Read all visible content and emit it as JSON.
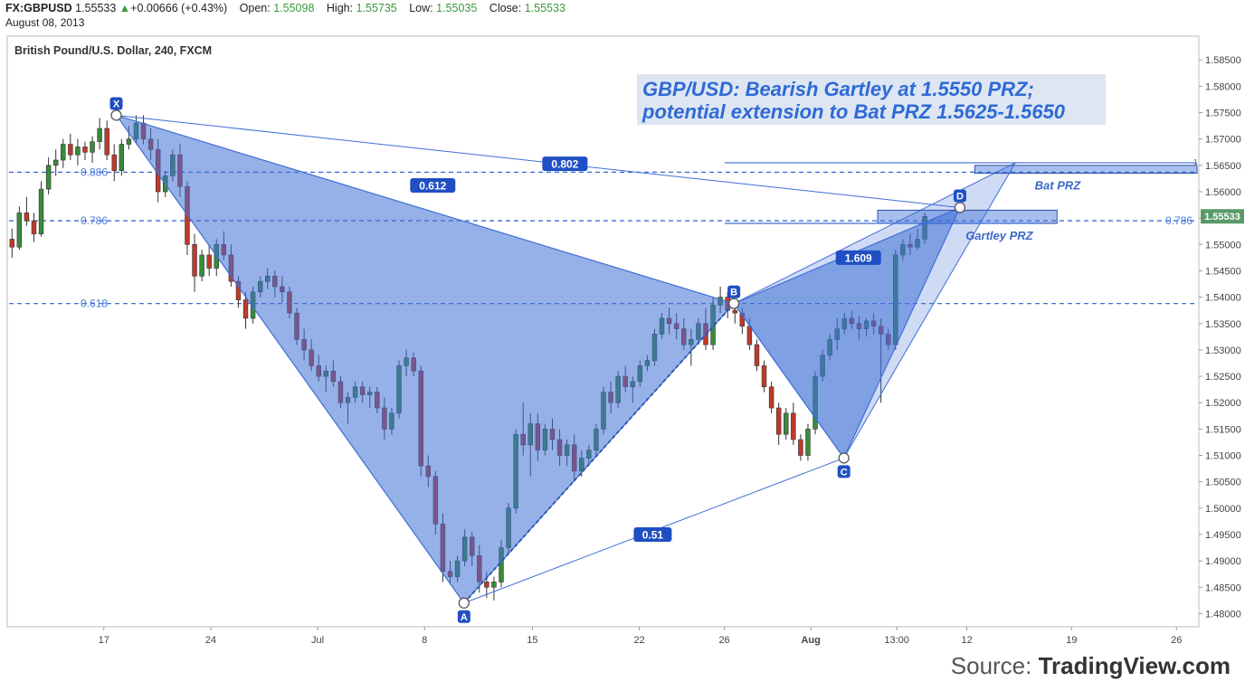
{
  "header": {
    "symbol": "FX:GBPUSD",
    "price": "1.55533",
    "change_arrow": "▲",
    "change": "+0.00666 (+0.43%)",
    "open_label": "Open:",
    "open": "1.55098",
    "high_label": "High:",
    "high": "1.55735",
    "low_label": "Low:",
    "low": "1.55035",
    "close_label": "Close:",
    "close": "1.55533",
    "date": "August 08, 2013"
  },
  "source": {
    "prefix": "Source: ",
    "brand": "TradingView.com"
  },
  "colors": {
    "bull": "#3a8a3a",
    "bear": "#c0392b",
    "pattern": "#3f6fd6",
    "accent": "#2e5fc9"
  },
  "chart_data": {
    "type": "candlestick",
    "title": "British Pound/U.S. Dollar, 240, FXCM",
    "annotation_title": [
      "GBP/USD: Bearish Gartley at 1.5550 PRZ;",
      "potential extension to Bat PRZ 1.5625-1.5650"
    ],
    "ylim": [
      1.4775,
      1.5895
    ],
    "y_ticks": [
      "1.58500",
      "1.58000",
      "1.57500",
      "1.57000",
      "1.56500",
      "1.56000",
      "1.55500",
      "1.55000",
      "1.54500",
      "1.54000",
      "1.53500",
      "1.53000",
      "1.52500",
      "1.52000",
      "1.51500",
      "1.51000",
      "1.50500",
      "1.50000",
      "1.49500",
      "1.49000",
      "1.48500",
      "1.48000"
    ],
    "x_ticks": [
      {
        "label": "17",
        "pos": 0.0811
      },
      {
        "label": "24",
        "pos": 0.1708
      },
      {
        "label": "Jul",
        "pos": 0.2605
      },
      {
        "label": "8",
        "pos": 0.3502
      },
      {
        "label": "15",
        "pos": 0.4407
      },
      {
        "label": "22",
        "pos": 0.5305
      },
      {
        "label": "26",
        "pos": 0.6018
      },
      {
        "label": "Aug",
        "pos": 0.6744
      },
      {
        "label": "13:00",
        "pos": 0.7465
      },
      {
        "label": "12",
        "pos": 0.8053
      },
      {
        "label": "19",
        "pos": 0.8932
      },
      {
        "label": "26",
        "pos": 0.9812
      }
    ],
    "last_price": "1.55533",
    "pattern_points": [
      {
        "label": "X",
        "x": 0.0915,
        "price": 1.5745
      },
      {
        "label": "A",
        "x": 0.3833,
        "price": 1.482
      },
      {
        "label": "B",
        "x": 0.6098,
        "price": 1.5388
      },
      {
        "label": "C",
        "x": 0.7021,
        "price": 1.5095
      },
      {
        "label": "D",
        "x": 0.7995,
        "price": 1.557
      }
    ],
    "ratios": [
      {
        "label": "0.612",
        "x": 0.3571,
        "price": 1.5612
      },
      {
        "label": "1.609",
        "x": 0.7143,
        "price": 1.5475
      },
      {
        "label": "0.51",
        "x": 0.5417,
        "price": 1.495
      },
      {
        "label": "0.802",
        "x": 0.468,
        "price": 1.5653
      }
    ],
    "fib_levels": [
      {
        "label": "0.886",
        "price": 1.5637
      },
      {
        "label": "0.786",
        "price": 1.5545
      },
      {
        "label": "0.618",
        "price": 1.5388
      }
    ],
    "fib_right_label": "0.786",
    "zones": [
      {
        "label": "Bat PRZ",
        "x0": 0.812,
        "x1": 0.9985,
        "p0": 1.565,
        "p1": 1.5635
      },
      {
        "label": "Gartley PRZ",
        "x0": 0.7305,
        "x1": 0.881,
        "p0": 1.5565,
        "p1": 1.554
      }
    ],
    "zone_one_label": "1",
    "candles": [
      [
        1.551,
        1.553,
        1.5475,
        1.5495
      ],
      [
        1.5495,
        1.5572,
        1.549,
        1.556
      ],
      [
        1.556,
        1.559,
        1.5535,
        1.5545
      ],
      [
        1.5545,
        1.556,
        1.5505,
        1.552
      ],
      [
        1.552,
        1.562,
        1.5515,
        1.5605
      ],
      [
        1.5605,
        1.5665,
        1.5595,
        1.565
      ],
      [
        1.565,
        1.568,
        1.563,
        1.566
      ],
      [
        1.566,
        1.57,
        1.5645,
        1.569
      ],
      [
        1.569,
        1.571,
        1.566,
        1.567
      ],
      [
        1.567,
        1.57,
        1.565,
        1.5685
      ],
      [
        1.5685,
        1.5695,
        1.566,
        1.5675
      ],
      [
        1.5675,
        1.5705,
        1.5655,
        1.5695
      ],
      [
        1.5695,
        1.574,
        1.568,
        1.572
      ],
      [
        1.572,
        1.5735,
        1.566,
        1.567
      ],
      [
        1.567,
        1.569,
        1.562,
        1.564
      ],
      [
        1.564,
        1.57,
        1.563,
        1.569
      ],
      [
        1.569,
        1.5725,
        1.568,
        1.57
      ],
      [
        1.57,
        1.5745,
        1.569,
        1.573
      ],
      [
        1.573,
        1.5745,
        1.569,
        1.57
      ],
      [
        1.57,
        1.572,
        1.566,
        1.568
      ],
      [
        1.568,
        1.57,
        1.558,
        1.56
      ],
      [
        1.56,
        1.564,
        1.559,
        1.563
      ],
      [
        1.563,
        1.568,
        1.562,
        1.567
      ],
      [
        1.567,
        1.569,
        1.559,
        1.561
      ],
      [
        1.561,
        1.562,
        1.548,
        1.55
      ],
      [
        1.55,
        1.552,
        1.541,
        1.544
      ],
      [
        1.544,
        1.549,
        1.543,
        1.548
      ],
      [
        1.548,
        1.55,
        1.544,
        1.5455
      ],
      [
        1.5455,
        1.551,
        1.544,
        1.55
      ],
      [
        1.55,
        1.5525,
        1.547,
        1.548
      ],
      [
        1.548,
        1.55,
        1.542,
        1.543
      ],
      [
        1.543,
        1.544,
        1.538,
        1.5395
      ],
      [
        1.5395,
        1.541,
        1.534,
        1.536
      ],
      [
        1.536,
        1.542,
        1.535,
        1.541
      ],
      [
        1.541,
        1.544,
        1.54,
        1.543
      ],
      [
        1.543,
        1.5455,
        1.5415,
        1.544
      ],
      [
        1.544,
        1.545,
        1.54,
        1.542
      ],
      [
        1.542,
        1.544,
        1.539,
        1.541
      ],
      [
        1.541,
        1.542,
        1.536,
        1.537
      ],
      [
        1.537,
        1.538,
        1.531,
        1.532
      ],
      [
        1.532,
        1.534,
        1.528,
        1.53
      ],
      [
        1.53,
        1.532,
        1.526,
        1.527
      ],
      [
        1.527,
        1.529,
        1.524,
        1.525
      ],
      [
        1.525,
        1.527,
        1.522,
        1.526
      ],
      [
        1.526,
        1.528,
        1.523,
        1.524
      ],
      [
        1.524,
        1.525,
        1.519,
        1.52
      ],
      [
        1.52,
        1.522,
        1.516,
        1.521
      ],
      [
        1.521,
        1.524,
        1.52,
        1.523
      ],
      [
        1.523,
        1.524,
        1.52,
        1.5215
      ],
      [
        1.5215,
        1.523,
        1.519,
        1.522
      ],
      [
        1.522,
        1.523,
        1.518,
        1.519
      ],
      [
        1.519,
        1.521,
        1.513,
        1.515
      ],
      [
        1.515,
        1.519,
        1.514,
        1.518
      ],
      [
        1.518,
        1.528,
        1.517,
        1.527
      ],
      [
        1.527,
        1.53,
        1.525,
        1.5285
      ],
      [
        1.5285,
        1.5295,
        1.525,
        1.526
      ],
      [
        1.526,
        1.527,
        1.506,
        1.508
      ],
      [
        1.508,
        1.51,
        1.504,
        1.506
      ],
      [
        1.506,
        1.507,
        1.495,
        1.497
      ],
      [
        1.497,
        1.499,
        1.486,
        1.488
      ],
      [
        1.488,
        1.49,
        1.4855,
        1.487
      ],
      [
        1.487,
        1.491,
        1.486,
        1.49
      ],
      [
        1.49,
        1.496,
        1.489,
        1.4945
      ],
      [
        1.4945,
        1.4955,
        1.489,
        1.491
      ],
      [
        1.491,
        1.493,
        1.484,
        1.486
      ],
      [
        1.486,
        1.488,
        1.483,
        1.485
      ],
      [
        1.485,
        1.487,
        1.4825,
        1.486
      ],
      [
        1.486,
        1.494,
        1.485,
        1.4925
      ],
      [
        1.4925,
        1.501,
        1.4915,
        1.5
      ],
      [
        1.5,
        1.515,
        1.499,
        1.514
      ],
      [
        1.514,
        1.52,
        1.51,
        1.512
      ],
      [
        1.512,
        1.518,
        1.506,
        1.516
      ],
      [
        1.516,
        1.518,
        1.509,
        1.511
      ],
      [
        1.511,
        1.516,
        1.51,
        1.515
      ],
      [
        1.515,
        1.517,
        1.511,
        1.513
      ],
      [
        1.513,
        1.515,
        1.508,
        1.51
      ],
      [
        1.51,
        1.513,
        1.508,
        1.512
      ],
      [
        1.512,
        1.514,
        1.505,
        1.507
      ],
      [
        1.507,
        1.511,
        1.506,
        1.5095
      ],
      [
        1.5095,
        1.512,
        1.508,
        1.511
      ],
      [
        1.511,
        1.516,
        1.51,
        1.515
      ],
      [
        1.515,
        1.523,
        1.514,
        1.522
      ],
      [
        1.522,
        1.524,
        1.518,
        1.52
      ],
      [
        1.52,
        1.526,
        1.519,
        1.525
      ],
      [
        1.525,
        1.527,
        1.522,
        1.523
      ],
      [
        1.523,
        1.525,
        1.52,
        1.524
      ],
      [
        1.524,
        1.528,
        1.523,
        1.527
      ],
      [
        1.527,
        1.529,
        1.526,
        1.528
      ],
      [
        1.528,
        1.534,
        1.527,
        1.533
      ],
      [
        1.533,
        1.537,
        1.532,
        1.536
      ],
      [
        1.536,
        1.538,
        1.533,
        1.535
      ],
      [
        1.535,
        1.537,
        1.532,
        1.534
      ],
      [
        1.534,
        1.536,
        1.53,
        1.531
      ],
      [
        1.531,
        1.534,
        1.527,
        1.532
      ],
      [
        1.532,
        1.536,
        1.531,
        1.535
      ],
      [
        1.535,
        1.538,
        1.53,
        1.531
      ],
      [
        1.531,
        1.54,
        1.53,
        1.5385
      ],
      [
        1.5385,
        1.542,
        1.537,
        1.54
      ],
      [
        1.54,
        1.541,
        1.536,
        1.5375
      ],
      [
        1.5375,
        1.5395,
        1.535,
        1.537
      ],
      [
        1.537,
        1.538,
        1.533,
        1.5345
      ],
      [
        1.5345,
        1.536,
        1.53,
        1.531
      ],
      [
        1.531,
        1.532,
        1.526,
        1.527
      ],
      [
        1.527,
        1.528,
        1.522,
        1.523
      ],
      [
        1.523,
        1.524,
        1.518,
        1.519
      ],
      [
        1.519,
        1.52,
        1.512,
        1.514
      ],
      [
        1.514,
        1.519,
        1.513,
        1.518
      ],
      [
        1.518,
        1.52,
        1.512,
        1.513
      ],
      [
        1.513,
        1.514,
        1.509,
        1.51
      ],
      [
        1.51,
        1.516,
        1.509,
        1.515
      ],
      [
        1.515,
        1.526,
        1.514,
        1.525
      ],
      [
        1.525,
        1.53,
        1.524,
        1.529
      ],
      [
        1.529,
        1.533,
        1.528,
        1.532
      ],
      [
        1.532,
        1.536,
        1.53,
        1.534
      ],
      [
        1.534,
        1.537,
        1.533,
        1.536
      ],
      [
        1.536,
        1.5375,
        1.534,
        1.535
      ],
      [
        1.535,
        1.5365,
        1.532,
        1.534
      ],
      [
        1.534,
        1.536,
        1.5325,
        1.5355
      ],
      [
        1.5355,
        1.537,
        1.533,
        1.5345
      ],
      [
        1.5345,
        1.536,
        1.52,
        1.533
      ],
      [
        1.533,
        1.534,
        1.53,
        1.531
      ],
      [
        1.531,
        1.549,
        1.53,
        1.548
      ],
      [
        1.548,
        1.551,
        1.547,
        1.55
      ],
      [
        1.55,
        1.552,
        1.548,
        1.5495
      ],
      [
        1.5495,
        1.553,
        1.549,
        1.551
      ],
      [
        1.551,
        1.556,
        1.55,
        1.5553
      ]
    ]
  }
}
